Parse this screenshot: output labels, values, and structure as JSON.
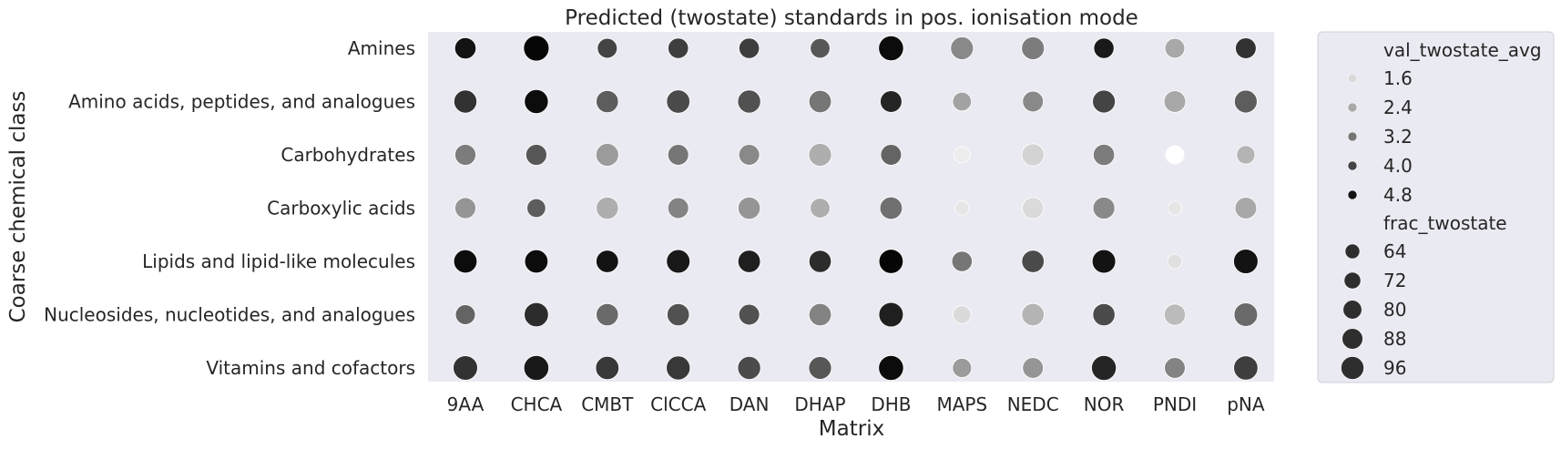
{
  "chart_data": {
    "type": "scatter",
    "title": "Predicted (twostate) standards in pos. ionisation mode",
    "xlabel": "Matrix",
    "ylabel": "Coarse chemical class",
    "x_categories": [
      "9AA",
      "CHCA",
      "CMBT",
      "ClCCA",
      "DAN",
      "DHAP",
      "DHB",
      "MAPS",
      "NEDC",
      "NOR",
      "PNDI",
      "pNA"
    ],
    "y_categories": [
      "Amines",
      "Amino acids, peptides, and analogues",
      "Carbohydrates",
      "Carboxylic acids",
      "Lipids and lipid-like molecules",
      "Nucleosides, nucleotides, and analogues",
      "Vitamins and cofactors"
    ],
    "grid": false,
    "legend_position": "right-outside",
    "hue_variable": "val_twostate_avg",
    "size_variable": "frac_twostate",
    "legend": {
      "hue_title": "val_twostate_avg",
      "hue_levels": [
        1.6,
        2.4,
        3.2,
        4.0,
        4.8
      ],
      "hue_labels": [
        "1.6",
        "2.4",
        "3.2",
        "4.0",
        "4.8"
      ],
      "size_title": "frac_twostate",
      "size_levels": [
        64,
        72,
        80,
        88,
        96
      ],
      "size_labels": [
        "64",
        "72",
        "80",
        "88",
        "96"
      ]
    },
    "value_scale": {
      "vmin": 1.0,
      "vmax": 5.1,
      "smin": 55,
      "smax": 100
    },
    "points": [
      {
        "x": "9AA",
        "y": "Amines",
        "val": 4.8,
        "frac": 82
      },
      {
        "x": "CHCA",
        "y": "Amines",
        "val": 5.0,
        "frac": 97
      },
      {
        "x": "CMBT",
        "y": "Amines",
        "val": 4.0,
        "frac": 77
      },
      {
        "x": "ClCCA",
        "y": "Amines",
        "val": 4.1,
        "frac": 79
      },
      {
        "x": "DAN",
        "y": "Amines",
        "val": 4.1,
        "frac": 79
      },
      {
        "x": "DHAP",
        "y": "Amines",
        "val": 3.7,
        "frac": 76
      },
      {
        "x": "DHB",
        "y": "Amines",
        "val": 4.9,
        "frac": 95
      },
      {
        "x": "MAPS",
        "y": "Amines",
        "val": 2.9,
        "frac": 87
      },
      {
        "x": "NEDC",
        "y": "Amines",
        "val": 3.1,
        "frac": 87
      },
      {
        "x": "NOR",
        "y": "Amines",
        "val": 4.7,
        "frac": 78
      },
      {
        "x": "PNDI",
        "y": "Amines",
        "val": 2.4,
        "frac": 77
      },
      {
        "x": "pNA",
        "y": "Amines",
        "val": 4.3,
        "frac": 80
      },
      {
        "x": "9AA",
        "y": "Amino acids, peptides, and analogues",
        "val": 4.3,
        "frac": 88
      },
      {
        "x": "CHCA",
        "y": "Amino acids, peptides, and analogues",
        "val": 4.9,
        "frac": 91
      },
      {
        "x": "CMBT",
        "y": "Amino acids, peptides, and analogues",
        "val": 3.6,
        "frac": 85
      },
      {
        "x": "ClCCA",
        "y": "Amino acids, peptides, and analogues",
        "val": 3.9,
        "frac": 89
      },
      {
        "x": "DAN",
        "y": "Amino acids, peptides, and analogues",
        "val": 3.8,
        "frac": 88
      },
      {
        "x": "DHAP",
        "y": "Amino acids, peptides, and analogues",
        "val": 3.2,
        "frac": 86
      },
      {
        "x": "DHB",
        "y": "Amino acids, peptides, and analogues",
        "val": 4.5,
        "frac": 83
      },
      {
        "x": "MAPS",
        "y": "Amino acids, peptides, and analogues",
        "val": 2.5,
        "frac": 73
      },
      {
        "x": "NEDC",
        "y": "Amino acids, peptides, and analogues",
        "val": 2.9,
        "frac": 80
      },
      {
        "x": "NOR",
        "y": "Amino acids, peptides, and analogues",
        "val": 4.0,
        "frac": 87
      },
      {
        "x": "PNDI",
        "y": "Amino acids, peptides, and analogues",
        "val": 2.4,
        "frac": 83
      },
      {
        "x": "pNA",
        "y": "Amino acids, peptides, and analogues",
        "val": 3.6,
        "frac": 87
      },
      {
        "x": "9AA",
        "y": "Carbohydrates",
        "val": 3.1,
        "frac": 81
      },
      {
        "x": "CHCA",
        "y": "Carbohydrates",
        "val": 3.7,
        "frac": 81
      },
      {
        "x": "CMBT",
        "y": "Carbohydrates",
        "val": 2.6,
        "frac": 87
      },
      {
        "x": "ClCCA",
        "y": "Carbohydrates",
        "val": 3.2,
        "frac": 80
      },
      {
        "x": "DAN",
        "y": "Carbohydrates",
        "val": 2.9,
        "frac": 80
      },
      {
        "x": "DHAP",
        "y": "Carbohydrates",
        "val": 2.3,
        "frac": 87
      },
      {
        "x": "DHB",
        "y": "Carbohydrates",
        "val": 3.5,
        "frac": 80
      },
      {
        "x": "MAPS",
        "y": "Carbohydrates",
        "val": 1.3,
        "frac": 64
      },
      {
        "x": "NEDC",
        "y": "Carbohydrates",
        "val": 1.7,
        "frac": 85
      },
      {
        "x": "NOR",
        "y": "Carbohydrates",
        "val": 3.1,
        "frac": 82
      },
      {
        "x": "PNDI",
        "y": "Carbohydrates",
        "val": 1.0,
        "frac": 72
      },
      {
        "x": "pNA",
        "y": "Carbohydrates",
        "val": 2.2,
        "frac": 72
      },
      {
        "x": "9AA",
        "y": "Carboxylic acids",
        "val": 2.7,
        "frac": 81
      },
      {
        "x": "CHCA",
        "y": "Carboxylic acids",
        "val": 3.6,
        "frac": 73
      },
      {
        "x": "CMBT",
        "y": "Carboxylic acids",
        "val": 2.3,
        "frac": 85
      },
      {
        "x": "ClCCA",
        "y": "Carboxylic acids",
        "val": 3.0,
        "frac": 80
      },
      {
        "x": "DAN",
        "y": "Carboxylic acids",
        "val": 2.7,
        "frac": 85
      },
      {
        "x": "DHAP",
        "y": "Carboxylic acids",
        "val": 2.3,
        "frac": 77
      },
      {
        "x": "DHB",
        "y": "Carboxylic acids",
        "val": 3.3,
        "frac": 86
      },
      {
        "x": "MAPS",
        "y": "Carboxylic acids",
        "val": 1.4,
        "frac": 57
      },
      {
        "x": "NEDC",
        "y": "Carboxylic acids",
        "val": 1.6,
        "frac": 82
      },
      {
        "x": "NOR",
        "y": "Carboxylic acids",
        "val": 2.9,
        "frac": 84
      },
      {
        "x": "PNDI",
        "y": "Carboxylic acids",
        "val": 1.4,
        "frac": 55
      },
      {
        "x": "pNA",
        "y": "Carboxylic acids",
        "val": 2.4,
        "frac": 83
      },
      {
        "x": "9AA",
        "y": "Lipids and lipid-like molecules",
        "val": 4.9,
        "frac": 89
      },
      {
        "x": "CHCA",
        "y": "Lipids and lipid-like molecules",
        "val": 4.9,
        "frac": 89
      },
      {
        "x": "CMBT",
        "y": "Lipids and lipid-like molecules",
        "val": 4.8,
        "frac": 86
      },
      {
        "x": "ClCCA",
        "y": "Lipids and lipid-like molecules",
        "val": 4.7,
        "frac": 90
      },
      {
        "x": "DAN",
        "y": "Lipids and lipid-like molecules",
        "val": 4.6,
        "frac": 86
      },
      {
        "x": "DHAP",
        "y": "Lipids and lipid-like molecules",
        "val": 4.4,
        "frac": 85
      },
      {
        "x": "DHB",
        "y": "Lipids and lipid-like molecules",
        "val": 5.0,
        "frac": 92
      },
      {
        "x": "MAPS",
        "y": "Lipids and lipid-like molecules",
        "val": 3.2,
        "frac": 79
      },
      {
        "x": "NEDC",
        "y": "Lipids and lipid-like molecules",
        "val": 3.9,
        "frac": 86
      },
      {
        "x": "NOR",
        "y": "Lipids and lipid-like molecules",
        "val": 4.8,
        "frac": 90
      },
      {
        "x": "PNDI",
        "y": "Lipids and lipid-like molecules",
        "val": 1.5,
        "frac": 58
      },
      {
        "x": "pNA",
        "y": "Lipids and lipid-like molecules",
        "val": 4.8,
        "frac": 93
      },
      {
        "x": "9AA",
        "y": "Nucleosides, nucleotides, and analogues",
        "val": 3.5,
        "frac": 77
      },
      {
        "x": "CHCA",
        "y": "Nucleosides, nucleotides, and analogues",
        "val": 4.4,
        "frac": 92
      },
      {
        "x": "CMBT",
        "y": "Nucleosides, nucleotides, and analogues",
        "val": 3.4,
        "frac": 85
      },
      {
        "x": "ClCCA",
        "y": "Nucleosides, nucleotides, and analogues",
        "val": 3.8,
        "frac": 85
      },
      {
        "x": "DAN",
        "y": "Nucleosides, nucleotides, and analogues",
        "val": 3.8,
        "frac": 80
      },
      {
        "x": "DHAP",
        "y": "Nucleosides, nucleotides, and analogues",
        "val": 3.0,
        "frac": 86
      },
      {
        "x": "DHB",
        "y": "Nucleosides, nucleotides, and analogues",
        "val": 4.6,
        "frac": 93
      },
      {
        "x": "MAPS",
        "y": "Nucleosides, nucleotides, and analogues",
        "val": 1.6,
        "frac": 70
      },
      {
        "x": "NEDC",
        "y": "Nucleosides, nucleotides, and analogues",
        "val": 2.2,
        "frac": 86
      },
      {
        "x": "NOR",
        "y": "Nucleosides, nucleotides, and analogues",
        "val": 3.9,
        "frac": 85
      },
      {
        "x": "PNDI",
        "y": "Nucleosides, nucleotides, and analogues",
        "val": 2.1,
        "frac": 82
      },
      {
        "x": "pNA",
        "y": "Nucleosides, nucleotides, and analogues",
        "val": 3.4,
        "frac": 90
      },
      {
        "x": "9AA",
        "y": "Vitamins and cofactors",
        "val": 4.3,
        "frac": 93
      },
      {
        "x": "CHCA",
        "y": "Vitamins and cofactors",
        "val": 4.7,
        "frac": 95
      },
      {
        "x": "CMBT",
        "y": "Vitamins and cofactors",
        "val": 4.2,
        "frac": 89
      },
      {
        "x": "ClCCA",
        "y": "Vitamins and cofactors",
        "val": 4.2,
        "frac": 91
      },
      {
        "x": "DAN",
        "y": "Vitamins and cofactors",
        "val": 3.9,
        "frac": 88
      },
      {
        "x": "DHAP",
        "y": "Vitamins and cofactors",
        "val": 3.7,
        "frac": 87
      },
      {
        "x": "DHB",
        "y": "Vitamins and cofactors",
        "val": 4.9,
        "frac": 95
      },
      {
        "x": "MAPS",
        "y": "Vitamins and cofactors",
        "val": 2.6,
        "frac": 74
      },
      {
        "x": "NEDC",
        "y": "Vitamins and cofactors",
        "val": 2.7,
        "frac": 80
      },
      {
        "x": "NOR",
        "y": "Vitamins and cofactors",
        "val": 4.5,
        "frac": 94
      },
      {
        "x": "PNDI",
        "y": "Vitamins and cofactors",
        "val": 3.0,
        "frac": 80
      },
      {
        "x": "pNA",
        "y": "Vitamins and cofactors",
        "val": 4.1,
        "frac": 92
      }
    ]
  }
}
